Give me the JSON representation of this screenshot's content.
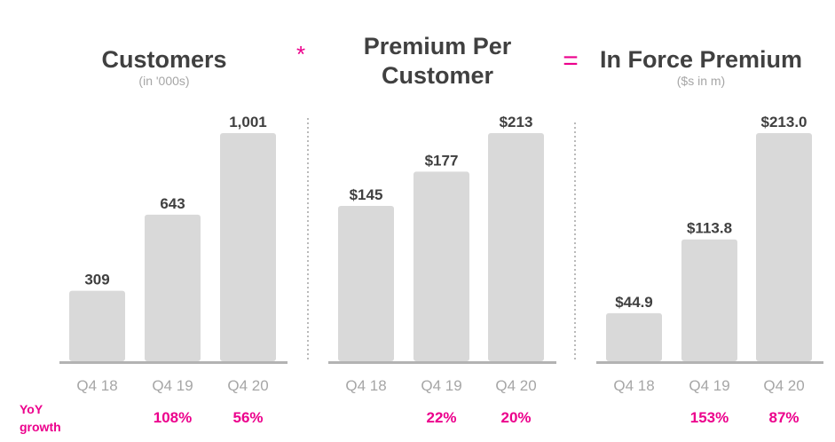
{
  "colors": {
    "bar": "#d9d9d9",
    "axis": "#b3b3b3",
    "title": "#404040",
    "subtitle": "#a6a6a6",
    "value_label": "#404040",
    "tick": "#a6a6a6",
    "accent": "#ec008c",
    "separator": "#8c8c8c"
  },
  "operators": {
    "multiply": "*",
    "equals": "="
  },
  "yoy_label": [
    "YoY",
    "growth"
  ],
  "chart_data": [
    {
      "type": "bar",
      "title": "Customers",
      "subtitle": "(in '000s)",
      "categories": [
        "Q4 18",
        "Q4 19",
        "Q4 20"
      ],
      "values": [
        309,
        643,
        1001
      ],
      "value_labels": [
        "309",
        "643",
        "1,001"
      ],
      "ylim": [
        0,
        1001
      ],
      "yoy_growth": [
        "",
        "108%",
        "56%"
      ]
    },
    {
      "type": "bar",
      "title": "Premium Per Customer",
      "title_lines": [
        "Premium Per",
        "Customer"
      ],
      "subtitle": "",
      "categories": [
        "Q4 18",
        "Q4 19",
        "Q4 20"
      ],
      "values": [
        145,
        177,
        213
      ],
      "value_labels": [
        "$145",
        "$177",
        "$213"
      ],
      "ylim": [
        0,
        213
      ],
      "yoy_growth": [
        "",
        "22%",
        "20%"
      ]
    },
    {
      "type": "bar",
      "title": "In Force Premium",
      "subtitle": "($s in m)",
      "categories": [
        "Q4 18",
        "Q4 19",
        "Q4 20"
      ],
      "values": [
        44.9,
        113.8,
        213.0
      ],
      "value_labels": [
        "$44.9",
        "$113.8",
        "$213.0"
      ],
      "ylim": [
        0,
        213.0
      ],
      "yoy_growth": [
        "",
        "153%",
        "87%"
      ]
    }
  ]
}
